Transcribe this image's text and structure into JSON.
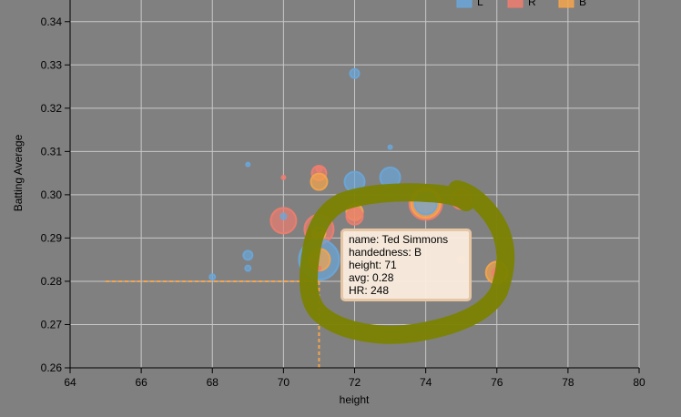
{
  "chart_data": {
    "type": "scatter",
    "xlabel": "height",
    "ylabel": "Batting Average",
    "xlim": [
      64,
      80
    ],
    "ylim": [
      0.26,
      0.345
    ],
    "x_ticks": [
      "64",
      "66",
      "68",
      "70",
      "72",
      "74",
      "76",
      "78",
      "80"
    ],
    "y_ticks": [
      "0.26",
      "0.27",
      "0.28",
      "0.29",
      "0.30",
      "0.31",
      "0.32",
      "0.33",
      "0.34"
    ],
    "grid": true,
    "legend_position": "top-right",
    "legend": [
      {
        "label": "L",
        "color": "#6aa6d9"
      },
      {
        "label": "R",
        "color": "#ee7d6f"
      },
      {
        "label": "B",
        "color": "#f5a54b"
      }
    ],
    "points": [
      {
        "height": 72,
        "avg": 0.328,
        "hand": "L",
        "r": 5
      },
      {
        "height": 73,
        "avg": 0.311,
        "hand": "L",
        "r": 2
      },
      {
        "height": 69,
        "avg": 0.307,
        "hand": "L",
        "r": 2
      },
      {
        "height": 71,
        "avg": 0.306,
        "hand": "R",
        "r": 3
      },
      {
        "height": 71,
        "avg": 0.305,
        "hand": "R",
        "r": 8
      },
      {
        "height": 70,
        "avg": 0.304,
        "hand": "R",
        "r": 2
      },
      {
        "height": 72,
        "avg": 0.303,
        "hand": "L",
        "r": 11
      },
      {
        "height": 73,
        "avg": 0.304,
        "hand": "L",
        "r": 11
      },
      {
        "height": 71,
        "avg": 0.303,
        "hand": "B",
        "r": 9
      },
      {
        "height": 74,
        "avg": 0.298,
        "hand": "R",
        "r": 18
      },
      {
        "height": 74,
        "avg": 0.298,
        "hand": "B",
        "r": 16
      },
      {
        "height": 74,
        "avg": 0.298,
        "hand": "L",
        "r": 12
      },
      {
        "height": 75,
        "avg": 0.299,
        "hand": "R",
        "r": 11
      },
      {
        "height": 72,
        "avg": 0.296,
        "hand": "B",
        "r": 9
      },
      {
        "height": 72,
        "avg": 0.295,
        "hand": "R",
        "r": 9
      },
      {
        "height": 70,
        "avg": 0.294,
        "hand": "R",
        "r": 14
      },
      {
        "height": 70,
        "avg": 0.295,
        "hand": "L",
        "r": 3
      },
      {
        "height": 71,
        "avg": 0.292,
        "hand": "R",
        "r": 16
      },
      {
        "height": 71,
        "avg": 0.293,
        "hand": "L",
        "r": 9
      },
      {
        "height": 71,
        "avg": 0.291,
        "hand": "B",
        "r": 7
      },
      {
        "height": 71,
        "avg": 0.289,
        "hand": "R",
        "r": 4
      },
      {
        "height": 69,
        "avg": 0.286,
        "hand": "L",
        "r": 5
      },
      {
        "height": 69,
        "avg": 0.283,
        "hand": "L",
        "r": 3
      },
      {
        "height": 68,
        "avg": 0.281,
        "hand": "L",
        "r": 3
      },
      {
        "height": 71,
        "avg": 0.285,
        "hand": "L",
        "r": 22
      },
      {
        "height": 71,
        "avg": 0.285,
        "hand": "B",
        "r": 12
      },
      {
        "height": 71,
        "avg": 0.283,
        "hand": "R",
        "r": 2
      },
      {
        "height": 75,
        "avg": 0.285,
        "hand": "R",
        "r": 3
      },
      {
        "height": 76,
        "avg": 0.282,
        "hand": "B",
        "r": 12
      },
      {
        "height": 76,
        "avg": 0.282,
        "hand": "R",
        "r": 5
      }
    ],
    "highlight": {
      "name": "Ted Simmons",
      "handedness": "B",
      "height": 71,
      "avg": 0.28,
      "HR": 248,
      "guide_x_from": 65
    }
  },
  "tooltip": {
    "name_line": "name: Ted Simmons",
    "handedness_line": "handedness: B",
    "height_line": "height: 71",
    "avg_line": "avg: 0.28",
    "hr_line": "HR: 248"
  },
  "annotation": {
    "color": "#7a8200"
  }
}
